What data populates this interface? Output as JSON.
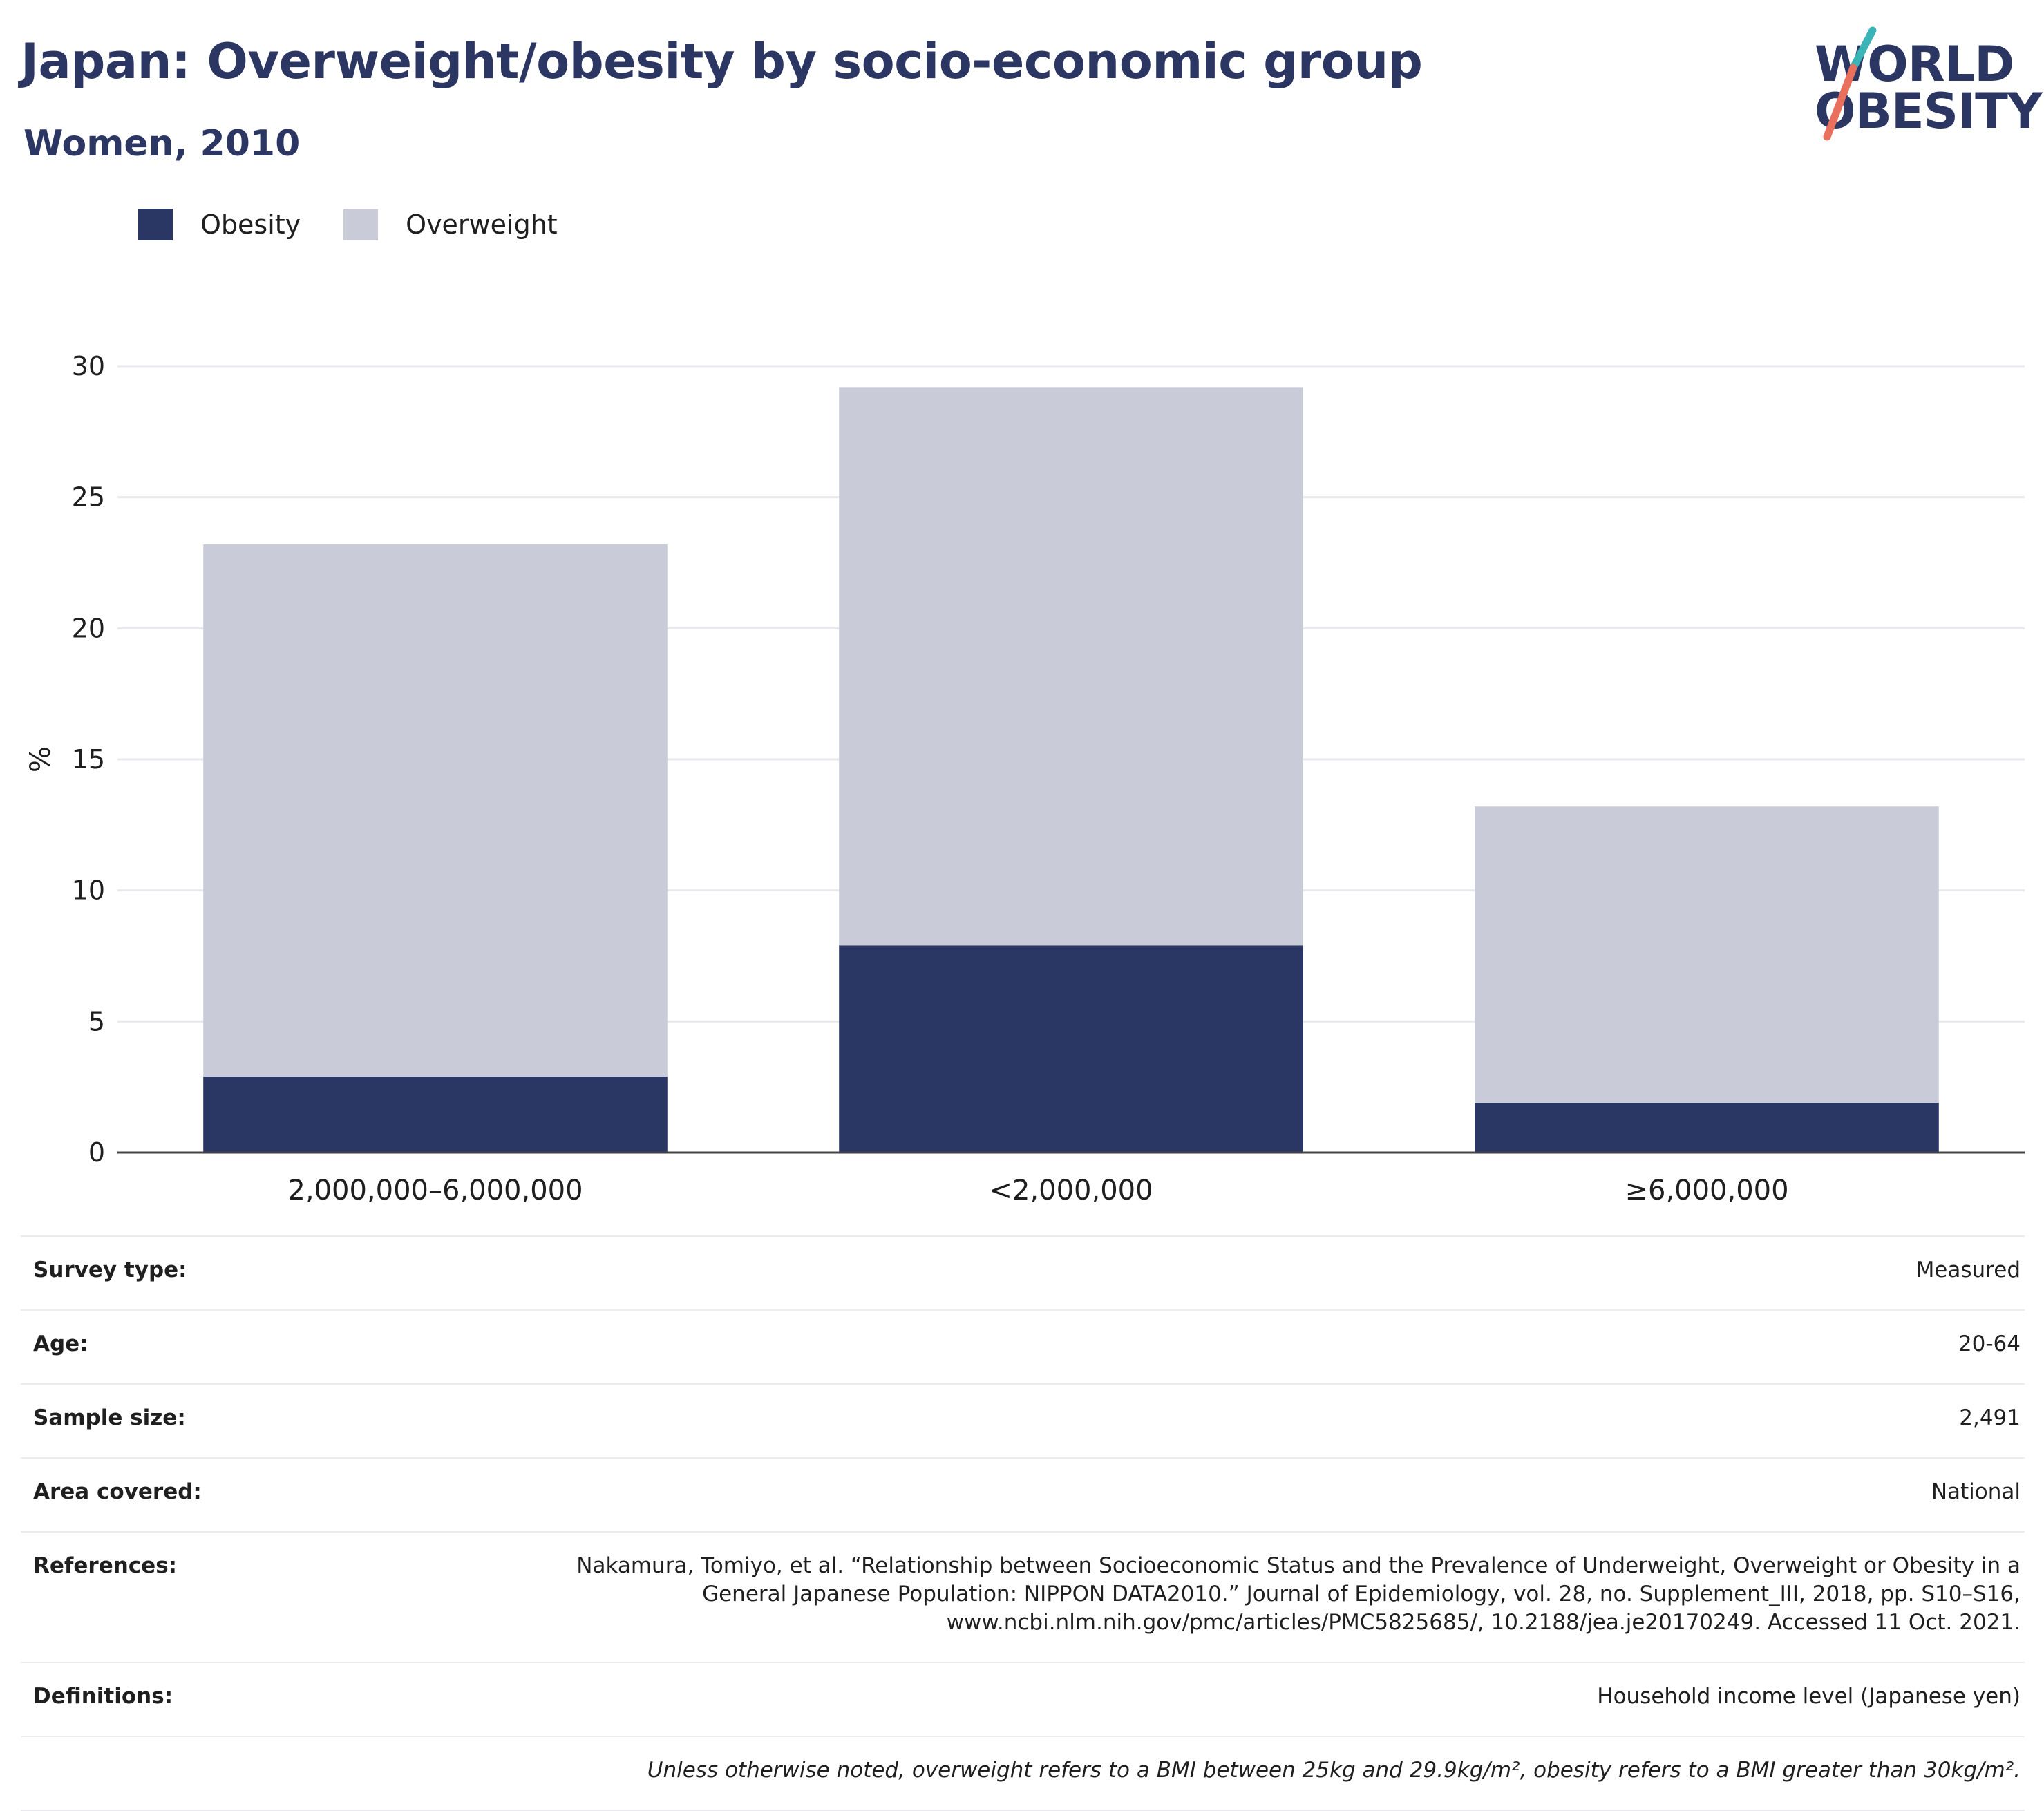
{
  "header": {
    "title": "Japan: Overweight/obesity by socio-economic group",
    "subtitle": "Women, 2010",
    "logo_line1": "WORLD",
    "logo_line2": "OBESITY"
  },
  "legend": [
    {
      "label": "Obesity",
      "color": "#2a3663"
    },
    {
      "label": "Overweight",
      "color": "#c9ccd8"
    }
  ],
  "chart_data": {
    "type": "bar",
    "stacked": true,
    "categories": [
      "2,000,000–6,000,000",
      "<2,000,000",
      "≥6,000,000"
    ],
    "series": [
      {
        "name": "Obesity",
        "values": [
          2.9,
          7.9,
          1.9
        ],
        "color": "#2a3663"
      },
      {
        "name": "Overweight",
        "values": [
          20.3,
          21.3,
          11.3
        ],
        "color": "#c9ccd8"
      }
    ],
    "ylabel": "%",
    "ylim": [
      0,
      30
    ],
    "yticks": [
      0,
      5,
      10,
      15,
      20,
      25,
      30
    ],
    "grid": true,
    "legend_position": "top-left"
  },
  "info": {
    "rows": [
      {
        "label": "Survey type:",
        "value": "Measured"
      },
      {
        "label": "Age:",
        "value": "20-64"
      },
      {
        "label": "Sample size:",
        "value": "2,491"
      },
      {
        "label": "Area covered:",
        "value": "National"
      },
      {
        "label": "References:",
        "value": "Nakamura, Tomiyo, et al. “Relationship between Socioeconomic Status and the Prevalence of Underweight, Overweight or Obesity in a\nGeneral Japanese Population: NIPPON DATA2010.” Journal of Epidemiology, vol. 28, no. Supplement_III, 2018, pp. S10–S16,\nwww.ncbi.nlm.nih.gov/pmc/articles/PMC5825685/, 10.2188/jea.je20170249. Accessed 11 Oct. 2021."
      },
      {
        "label": "Definitions:",
        "value": "Household income level (Japanese yen)"
      }
    ],
    "note": "Unless otherwise noted, overweight refers to a BMI between 25kg and 29.9kg/m², obesity refers to a BMI greater than 30kg/m²."
  }
}
